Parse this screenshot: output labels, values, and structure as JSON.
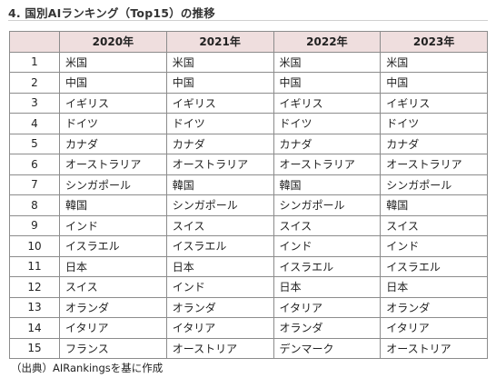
{
  "title": "4. 国別AIランキング（Top15）の推移",
  "headers": [
    "",
    "2020年",
    "2021年",
    "2022年",
    "2023年"
  ],
  "rows": [
    {
      "rank": "1",
      "y2020": "米国",
      "y2021": "米国",
      "y2022": "米国",
      "y2023": "米国"
    },
    {
      "rank": "2",
      "y2020": "中国",
      "y2021": "中国",
      "y2022": "中国",
      "y2023": "中国"
    },
    {
      "rank": "3",
      "y2020": "イギリス",
      "y2021": "イギリス",
      "y2022": "イギリス",
      "y2023": "イギリス"
    },
    {
      "rank": "4",
      "y2020": "ドイツ",
      "y2021": "ドイツ",
      "y2022": "ドイツ",
      "y2023": "ドイツ"
    },
    {
      "rank": "5",
      "y2020": "カナダ",
      "y2021": "カナダ",
      "y2022": "カナダ",
      "y2023": "カナダ"
    },
    {
      "rank": "6",
      "y2020": "オーストラリア",
      "y2021": "オーストラリア",
      "y2022": "オーストラリア",
      "y2023": "オーストラリア"
    },
    {
      "rank": "7",
      "y2020": "シンガポール",
      "y2021": "韓国",
      "y2022": "韓国",
      "y2023": "シンガポール"
    },
    {
      "rank": "8",
      "y2020": "韓国",
      "y2021": "シンガポール",
      "y2022": "シンガポール",
      "y2023": "韓国"
    },
    {
      "rank": "9",
      "y2020": "インド",
      "y2021": "スイス",
      "y2022": "スイス",
      "y2023": "スイス"
    },
    {
      "rank": "10",
      "y2020": "イスラエル",
      "y2021": "イスラエル",
      "y2022": "インド",
      "y2023": "インド"
    },
    {
      "rank": "11",
      "y2020": "日本",
      "y2021": "日本",
      "y2022": "イスラエル",
      "y2023": "イスラエル"
    },
    {
      "rank": "12",
      "y2020": "スイス",
      "y2021": "インド",
      "y2022": "日本",
      "y2023": "日本"
    },
    {
      "rank": "13",
      "y2020": "オランダ",
      "y2021": "オランダ",
      "y2022": "イタリア",
      "y2023": "オランダ"
    },
    {
      "rank": "14",
      "y2020": "イタリア",
      "y2021": "イタリア",
      "y2022": "オランダ",
      "y2023": "イタリア"
    },
    {
      "rank": "15",
      "y2020": "フランス",
      "y2021": "オーストリア",
      "y2022": "デンマーク",
      "y2023": "オーストリア"
    }
  ],
  "source": "（出典）AIRankingsを基に作成",
  "colors": {
    "header_background": "#efdede",
    "border": "#8c8c8c"
  }
}
